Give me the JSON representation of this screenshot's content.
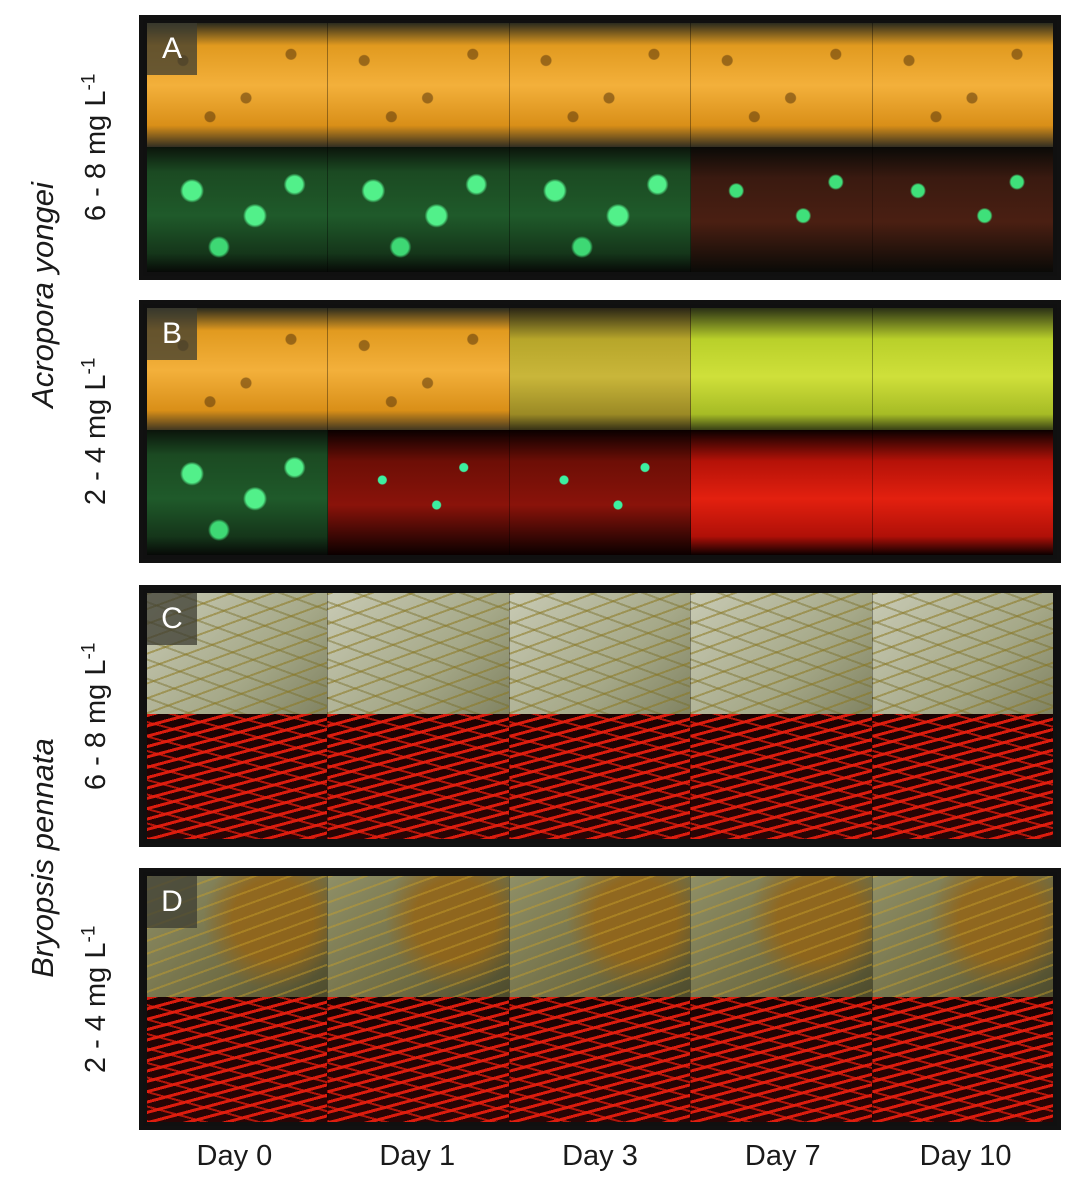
{
  "species": {
    "acropora": "Acropora yongei",
    "bryopsis": "Bryopsis pennata"
  },
  "concentrations": {
    "high": {
      "base": "6 - 8 mg L",
      "exp": "-1"
    },
    "low": {
      "base": "2 - 4 mg L",
      "exp": "-1"
    }
  },
  "panels": {
    "a": {
      "label": "A"
    },
    "b": {
      "label": "B"
    },
    "c": {
      "label": "C"
    },
    "d": {
      "label": "D"
    }
  },
  "days": [
    "Day 0",
    "Day 1",
    "Day 3",
    "Day 7",
    "Day 10"
  ]
}
